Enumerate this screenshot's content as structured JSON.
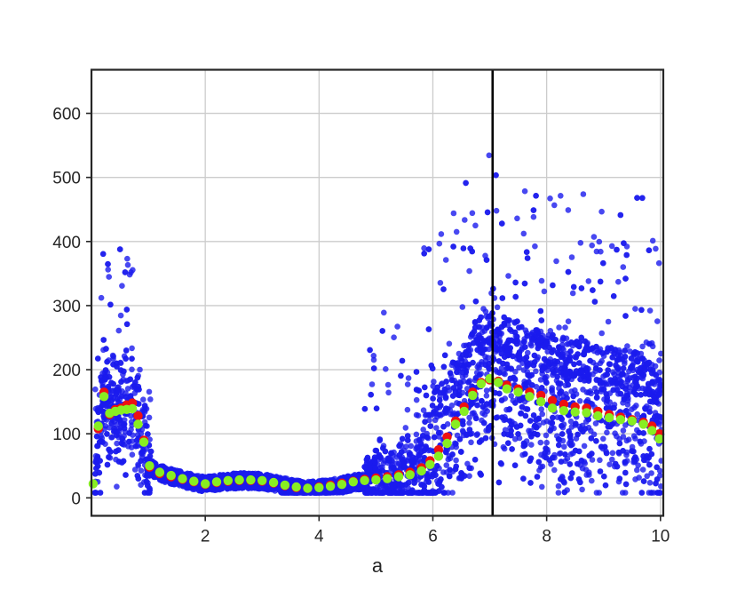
{
  "chart_data": {
    "type": "scatter",
    "title": "",
    "xlabel": "a",
    "ylabel": "",
    "xlim": [
      0.0,
      10.05
    ],
    "ylim": [
      -28,
      668
    ],
    "grid": true,
    "legend": "none",
    "x_ticks": [
      2,
      4,
      6,
      8,
      10
    ],
    "y_ticks": [
      0,
      100,
      200,
      300,
      400,
      500,
      600
    ],
    "vertical_line": {
      "x": 7.05,
      "color": "#000000"
    },
    "colors": {
      "raw": "#1a1aee",
      "median": "#ee1111",
      "mean": "#88ee22",
      "grid": "#cccccc",
      "frame": "#262626"
    },
    "series": [
      {
        "role": "mean",
        "x": [
          0.03,
          0.12,
          0.22,
          0.32,
          0.42,
          0.52,
          0.62,
          0.72,
          0.82,
          0.92,
          1.02,
          1.2,
          1.4,
          1.6,
          1.8,
          2.0,
          2.2,
          2.4,
          2.6,
          2.8,
          3.0,
          3.2,
          3.4,
          3.6,
          3.8,
          4.0,
          4.2,
          4.4,
          4.6,
          4.8,
          5.0,
          5.2,
          5.4,
          5.6,
          5.8,
          5.95,
          6.1,
          6.25,
          6.4,
          6.55,
          6.7,
          6.85,
          7.0,
          7.15,
          7.3,
          7.5,
          7.7,
          7.9,
          8.1,
          8.3,
          8.5,
          8.7,
          8.9,
          9.1,
          9.3,
          9.5,
          9.7,
          9.85,
          9.98
        ],
        "y": [
          22,
          112,
          158,
          132,
          135,
          137,
          138,
          139,
          115,
          87,
          50,
          40,
          35,
          30,
          26,
          22,
          25,
          27,
          28,
          28,
          27,
          24,
          20,
          17,
          15,
          16,
          18,
          21,
          25,
          27,
          28,
          30,
          33,
          36,
          42,
          52,
          65,
          85,
          115,
          135,
          160,
          178,
          186,
          180,
          170,
          165,
          158,
          150,
          140,
          136,
          134,
          133,
          128,
          125,
          122,
          120,
          115,
          105,
          92
        ]
      },
      {
        "role": "median",
        "x": [
          0.12,
          0.22,
          0.32,
          0.42,
          0.52,
          0.62,
          0.72,
          0.82,
          0.92,
          1.02,
          1.2,
          1.4,
          1.6,
          1.8,
          2.0,
          2.2,
          2.4,
          2.6,
          2.8,
          3.0,
          3.2,
          3.4,
          3.6,
          3.8,
          4.0,
          4.2,
          4.4,
          4.6,
          4.8,
          5.0,
          5.2,
          5.4,
          5.6,
          5.8,
          5.95,
          6.1,
          6.25,
          6.4,
          6.55,
          6.7,
          6.85,
          7.0,
          7.15,
          7.3,
          7.5,
          7.7,
          7.9,
          8.1,
          8.3,
          8.5,
          8.7,
          8.9,
          9.1,
          9.3,
          9.5,
          9.7,
          9.85,
          9.98
        ],
        "y": [
          108,
          165,
          130,
          138,
          140,
          145,
          148,
          128,
          90,
          48,
          38,
          33,
          29,
          25,
          21,
          24,
          26,
          27,
          27,
          26,
          23,
          19,
          16,
          15,
          17,
          20,
          23,
          26,
          29,
          31,
          33,
          36,
          40,
          47,
          58,
          75,
          95,
          120,
          142,
          165,
          180,
          184,
          182,
          176,
          170,
          165,
          160,
          152,
          146,
          142,
          140,
          135,
          130,
          126,
          122,
          118,
          112,
          100
        ]
      }
    ]
  }
}
